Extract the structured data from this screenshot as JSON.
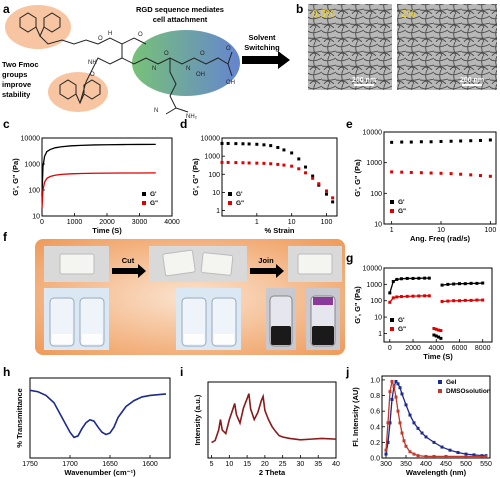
{
  "panel_a": {
    "label": "a",
    "annotation_top": "RGD sequence mediates",
    "annotation_top2": "cell attachment",
    "annotation_left": [
      "Two Fmoc",
      "groups",
      "improve",
      "stability"
    ],
    "arrow_label": [
      "Solvent",
      "Switching"
    ]
  },
  "panel_b": {
    "label": "b",
    "images": [
      {
        "concentration": "0.5%",
        "scale": "200 nm"
      },
      {
        "concentration": "2%",
        "scale": "200 nm"
      }
    ]
  },
  "panel_f": {
    "label": "f",
    "step1": "Cut",
    "step2": "Join"
  },
  "colors": {
    "Gp": "#000000",
    "Gpp": "#e00000",
    "ftir": "#1c2a8c",
    "xrd": "#8b1a1a",
    "gel": "#1c2a8c",
    "dmso": "#c0392b",
    "orange": "#f0a060"
  },
  "chart_data": [
    {
      "panel": "c",
      "type": "line",
      "xlabel": "Time (S)",
      "ylabel": "G', G\" (Pa)",
      "xlim": [
        0,
        4000
      ],
      "xticks": [
        "0",
        "1000",
        "2000",
        "3000",
        "4000"
      ],
      "yscale": "log",
      "ylim": [
        10,
        10000
      ],
      "yticks": [
        "10",
        "100",
        "1000",
        "10000"
      ],
      "legend": "lower-right",
      "series": [
        {
          "name": "G'",
          "x": [
            0,
            30,
            80,
            150,
            250,
            400,
            600,
            900,
            1200,
            1600,
            2000,
            2500,
            3000,
            3500
          ],
          "y": [
            60,
            800,
            2000,
            3000,
            3600,
            4200,
            4600,
            5000,
            5200,
            5400,
            5500,
            5600,
            5650,
            5700
          ]
        },
        {
          "name": "G\"",
          "x": [
            0,
            30,
            80,
            150,
            250,
            400,
            600,
            900,
            1200,
            1600,
            2000,
            2500,
            3000,
            3500
          ],
          "y": [
            20,
            100,
            200,
            280,
            330,
            370,
            400,
            420,
            430,
            440,
            445,
            450,
            450,
            455
          ]
        }
      ]
    },
    {
      "panel": "d",
      "type": "scatter",
      "xlabel": "% Strain",
      "ylabel": "G', G\" (Pa)",
      "xscale": "log",
      "xlim": [
        0.1,
        200
      ],
      "xticks": [
        "1",
        "10",
        "100"
      ],
      "yscale": "log",
      "ylim": [
        0.5,
        10000
      ],
      "yticks": [
        "1",
        "10",
        "100",
        "1000",
        "10000"
      ],
      "legend": "lower-left",
      "series": [
        {
          "name": "G'",
          "x": [
            0.1,
            0.15,
            0.25,
            0.4,
            0.6,
            1,
            1.6,
            2.5,
            4,
            6,
            10,
            16,
            25,
            40,
            60,
            100,
            150
          ],
          "y": [
            5000,
            5000,
            4900,
            4800,
            4700,
            4500,
            4200,
            3800,
            3000,
            2200,
            1500,
            700,
            250,
            80,
            25,
            8,
            3
          ]
        },
        {
          "name": "G\"",
          "x": [
            0.1,
            0.15,
            0.25,
            0.4,
            0.6,
            1,
            1.6,
            2.5,
            4,
            6,
            10,
            16,
            25,
            40,
            60,
            100,
            150
          ],
          "y": [
            450,
            450,
            440,
            430,
            420,
            410,
            400,
            380,
            350,
            320,
            280,
            200,
            120,
            60,
            30,
            12,
            5
          ]
        }
      ]
    },
    {
      "panel": "e",
      "type": "scatter",
      "xlabel": "Ang. Freq (rad/s)",
      "ylabel": "G', G\" (Pa)",
      "xscale": "log",
      "xlim": [
        0.7,
        130
      ],
      "xticks": [
        "1",
        "10",
        "100"
      ],
      "yscale": "log",
      "ylim": [
        10,
        10000
      ],
      "yticks": [
        "10",
        "100",
        "1000",
        "10000"
      ],
      "legend": "lower-left",
      "series": [
        {
          "name": "G'",
          "x": [
            1,
            1.6,
            2.5,
            4,
            6.3,
            10,
            16,
            25,
            40,
            63,
            100
          ],
          "y": [
            4600,
            4700,
            4700,
            4800,
            4800,
            4900,
            5000,
            5100,
            5200,
            5300,
            5500
          ]
        },
        {
          "name": "G\"",
          "x": [
            1,
            1.6,
            2.5,
            4,
            6.3,
            10,
            16,
            25,
            40,
            63,
            100
          ],
          "y": [
            500,
            490,
            480,
            470,
            460,
            450,
            440,
            420,
            400,
            380,
            360
          ]
        }
      ]
    },
    {
      "panel": "g",
      "type": "line",
      "xlabel": "Time (S)",
      "ylabel": "G', G\" (Pa)",
      "xlim": [
        -500,
        8800
      ],
      "xticks": [
        "0",
        "2000",
        "4000",
        "6000",
        "8000"
      ],
      "yscale": "log",
      "ylim": [
        0.3,
        10000
      ],
      "yticks": [
        "1",
        "10",
        "100",
        "1000",
        "10000"
      ],
      "legend": "lower-left",
      "series": [
        {
          "name": "G'",
          "segments": [
            {
              "x": [
                0,
                300,
                600,
                1000,
                1500,
                2000,
                2500,
                3000,
                3400
              ],
              "y": [
                300,
                1500,
                2000,
                2200,
                2300,
                2300,
                2350,
                2400,
                2400
              ]
            },
            {
              "x": [
                3800,
                4000,
                4200,
                4400
              ],
              "y": [
                0.8,
                0.7,
                0.6,
                0.5
              ]
            },
            {
              "x": [
                4500,
                5000,
                5500,
                6000,
                6500,
                7000,
                7500,
                8000
              ],
              "y": [
                900,
                1000,
                1050,
                1100,
                1100,
                1150,
                1150,
                1200
              ]
            }
          ]
        },
        {
          "name": "G\"",
          "segments": [
            {
              "x": [
                0,
                300,
                600,
                1000,
                1500,
                2000,
                2500,
                3000,
                3400
              ],
              "y": [
                80,
                150,
                170,
                180,
                185,
                190,
                195,
                200,
                200
              ]
            },
            {
              "x": [
                3800,
                4000,
                4200,
                4400
              ],
              "y": [
                2,
                1.8,
                1.6,
                1.5
              ]
            },
            {
              "x": [
                4500,
                5000,
                5500,
                6000,
                6500,
                7000,
                7500,
                8000
              ],
              "y": [
                90,
                95,
                100,
                100,
                105,
                105,
                110,
                110
              ]
            }
          ]
        }
      ]
    },
    {
      "panel": "h",
      "type": "line",
      "xlabel": "Wavenumber (cm⁻¹)",
      "ylabel": "% Transmittance",
      "xlim": [
        1750,
        1575
      ],
      "xticks": [
        "1750",
        "1700",
        "1650",
        "1600"
      ],
      "series": [
        {
          "name": "",
          "x": [
            1750,
            1740,
            1730,
            1720,
            1710,
            1700,
            1695,
            1690,
            1685,
            1680,
            1675,
            1670,
            1665,
            1660,
            1655,
            1650,
            1645,
            1640,
            1630,
            1620,
            1610,
            1600,
            1590,
            1580
          ],
          "y": [
            0.92,
            0.9,
            0.85,
            0.75,
            0.55,
            0.35,
            0.28,
            0.3,
            0.4,
            0.48,
            0.52,
            0.5,
            0.42,
            0.35,
            0.32,
            0.34,
            0.42,
            0.55,
            0.7,
            0.78,
            0.83,
            0.85,
            0.86,
            0.87
          ]
        }
      ]
    },
    {
      "panel": "i",
      "type": "line",
      "xlabel": "2 Theta",
      "ylabel": "Intensity (a.u.)",
      "xlim": [
        4,
        40
      ],
      "xticks": [
        "5",
        "10",
        "15",
        "20",
        "25",
        "30",
        "35",
        "40"
      ],
      "series": [
        {
          "name": "",
          "x": [
            5,
            6,
            7,
            7.5,
            8,
            9,
            10,
            11,
            11.5,
            12,
            13,
            14,
            15,
            15.5,
            16,
            17,
            18,
            19,
            19.5,
            20,
            21,
            22,
            23,
            24,
            25,
            27,
            30,
            33,
            36,
            40
          ],
          "y": [
            0.22,
            0.25,
            0.4,
            0.55,
            0.4,
            0.35,
            0.55,
            0.7,
            0.78,
            0.62,
            0.5,
            0.72,
            0.85,
            0.92,
            0.7,
            0.55,
            0.65,
            0.82,
            0.88,
            0.68,
            0.55,
            0.45,
            0.38,
            0.32,
            0.3,
            0.28,
            0.26,
            0.27,
            0.28,
            0.27
          ]
        }
      ]
    },
    {
      "panel": "j",
      "type": "line",
      "xlabel": "Wavelength (nm)",
      "ylabel": "Fl. Intensity (AU)",
      "xlim": [
        290,
        560
      ],
      "xticks": [
        "300",
        "350",
        "400",
        "450",
        "500",
        "550"
      ],
      "ylim": [
        0,
        1.05
      ],
      "yticks": [
        "0.0",
        "0.2",
        "0.4",
        "0.6",
        "0.8",
        "1.0"
      ],
      "legend": "top-right",
      "series": [
        {
          "name": "Gel",
          "x": [
            300,
            305,
            310,
            315,
            320,
            325,
            330,
            335,
            340,
            350,
            360,
            370,
            380,
            390,
            400,
            420,
            440,
            460,
            480,
            500,
            520,
            540,
            550
          ],
          "y": [
            0.05,
            0.2,
            0.45,
            0.75,
            0.92,
            0.98,
            0.95,
            0.9,
            0.82,
            0.68,
            0.55,
            0.45,
            0.38,
            0.32,
            0.27,
            0.2,
            0.14,
            0.1,
            0.07,
            0.05,
            0.04,
            0.03,
            0.03
          ]
        },
        {
          "name": "DMSOsolution",
          "x": [
            300,
            305,
            310,
            315,
            320,
            325,
            330,
            335,
            340,
            345,
            350,
            360,
            370,
            380,
            400,
            420,
            450,
            500,
            550
          ],
          "y": [
            0.1,
            0.45,
            0.85,
            0.98,
            0.92,
            0.78,
            0.6,
            0.45,
            0.32,
            0.22,
            0.15,
            0.08,
            0.05,
            0.03,
            0.02,
            0.02,
            0.02,
            0.02,
            0.02
          ]
        }
      ]
    }
  ]
}
